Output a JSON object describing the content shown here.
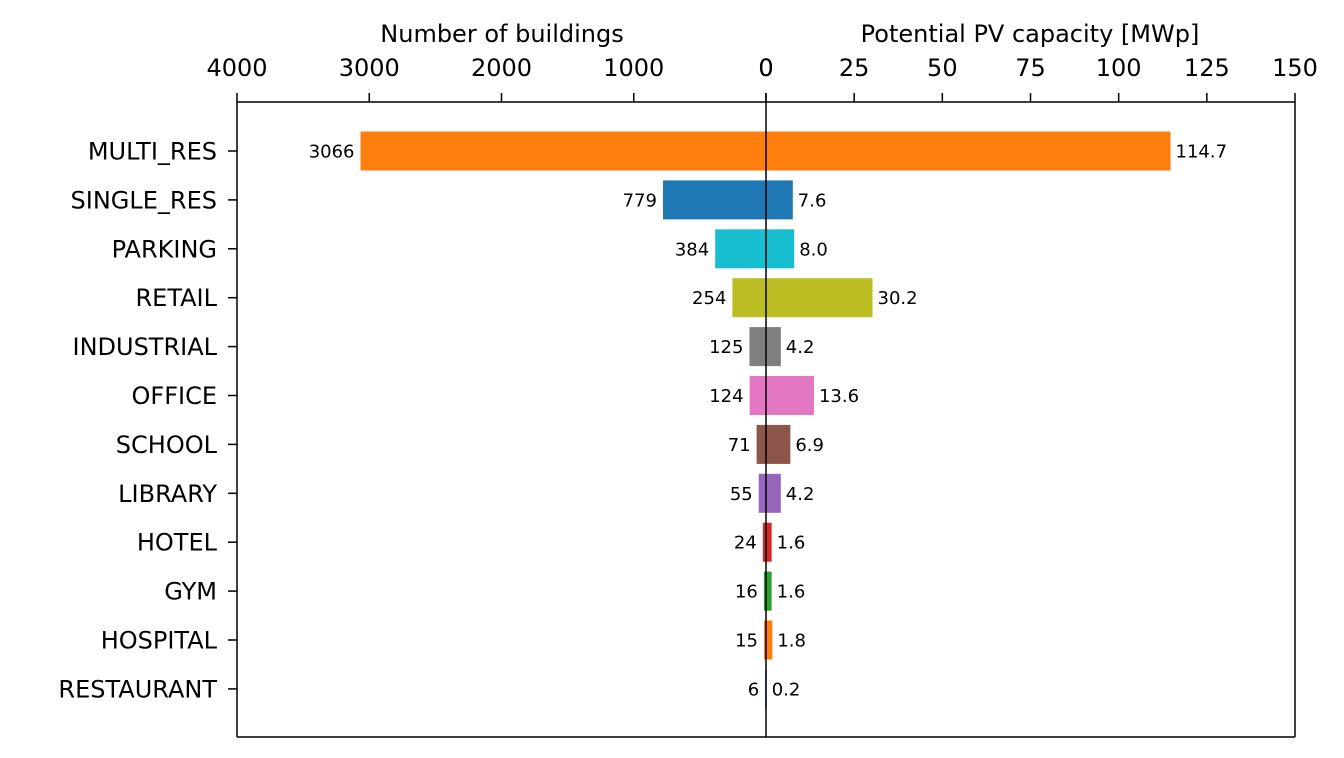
{
  "chart_data": {
    "type": "bar",
    "orientation": "horizontal",
    "layout": "diverging back-to-back, shared category axis",
    "categories": [
      "MULTI_RES",
      "SINGLE_RES",
      "PARKING",
      "RETAIL",
      "INDUSTRIAL",
      "OFFICE",
      "SCHOOL",
      "LIBRARY",
      "HOTEL",
      "GYM",
      "HOSPITAL",
      "RESTAURANT"
    ],
    "colors": [
      "#ff7f0e",
      "#1f77b4",
      "#17becf",
      "#bcbd22",
      "#7f7f7f",
      "#e377c2",
      "#8c564b",
      "#9467bd",
      "#d62728",
      "#2ca02c",
      "#ff7f0e",
      "#1f77b4"
    ],
    "series": [
      {
        "side": "left",
        "values": [
          3066,
          779,
          384,
          254,
          125,
          124,
          71,
          55,
          24,
          16,
          15,
          6
        ],
        "labels": [
          "3066",
          "779",
          "384",
          "254",
          "125",
          "124",
          "71",
          "55",
          "24",
          "16",
          "15",
          "6"
        ]
      },
      {
        "side": "right",
        "values": [
          114.7,
          7.6,
          8.0,
          30.2,
          4.2,
          13.6,
          6.9,
          4.2,
          1.6,
          1.6,
          1.8,
          0.2
        ],
        "labels": [
          "114.7",
          "7.6",
          "8.0",
          "30.2",
          "4.2",
          "13.6",
          "6.9",
          "4.2",
          "1.6",
          "1.6",
          "1.8",
          "0.2"
        ]
      }
    ],
    "left_axis": {
      "label": "Number of buildings",
      "range": [
        4000,
        0
      ],
      "ticks": [
        4000,
        3000,
        2000,
        1000,
        0
      ],
      "tick_labels": [
        "4000",
        "3000",
        "2000",
        "1000",
        "0"
      ]
    },
    "right_axis": {
      "label": "Potential PV capacity [MWp]",
      "range": [
        0,
        150
      ],
      "ticks": [
        0,
        25,
        50,
        75,
        100,
        125,
        150
      ],
      "tick_labels": [
        "0",
        "25",
        "50",
        "75",
        "100",
        "125",
        "150"
      ]
    },
    "axis_position": "top",
    "grid": false,
    "legend": "none"
  }
}
